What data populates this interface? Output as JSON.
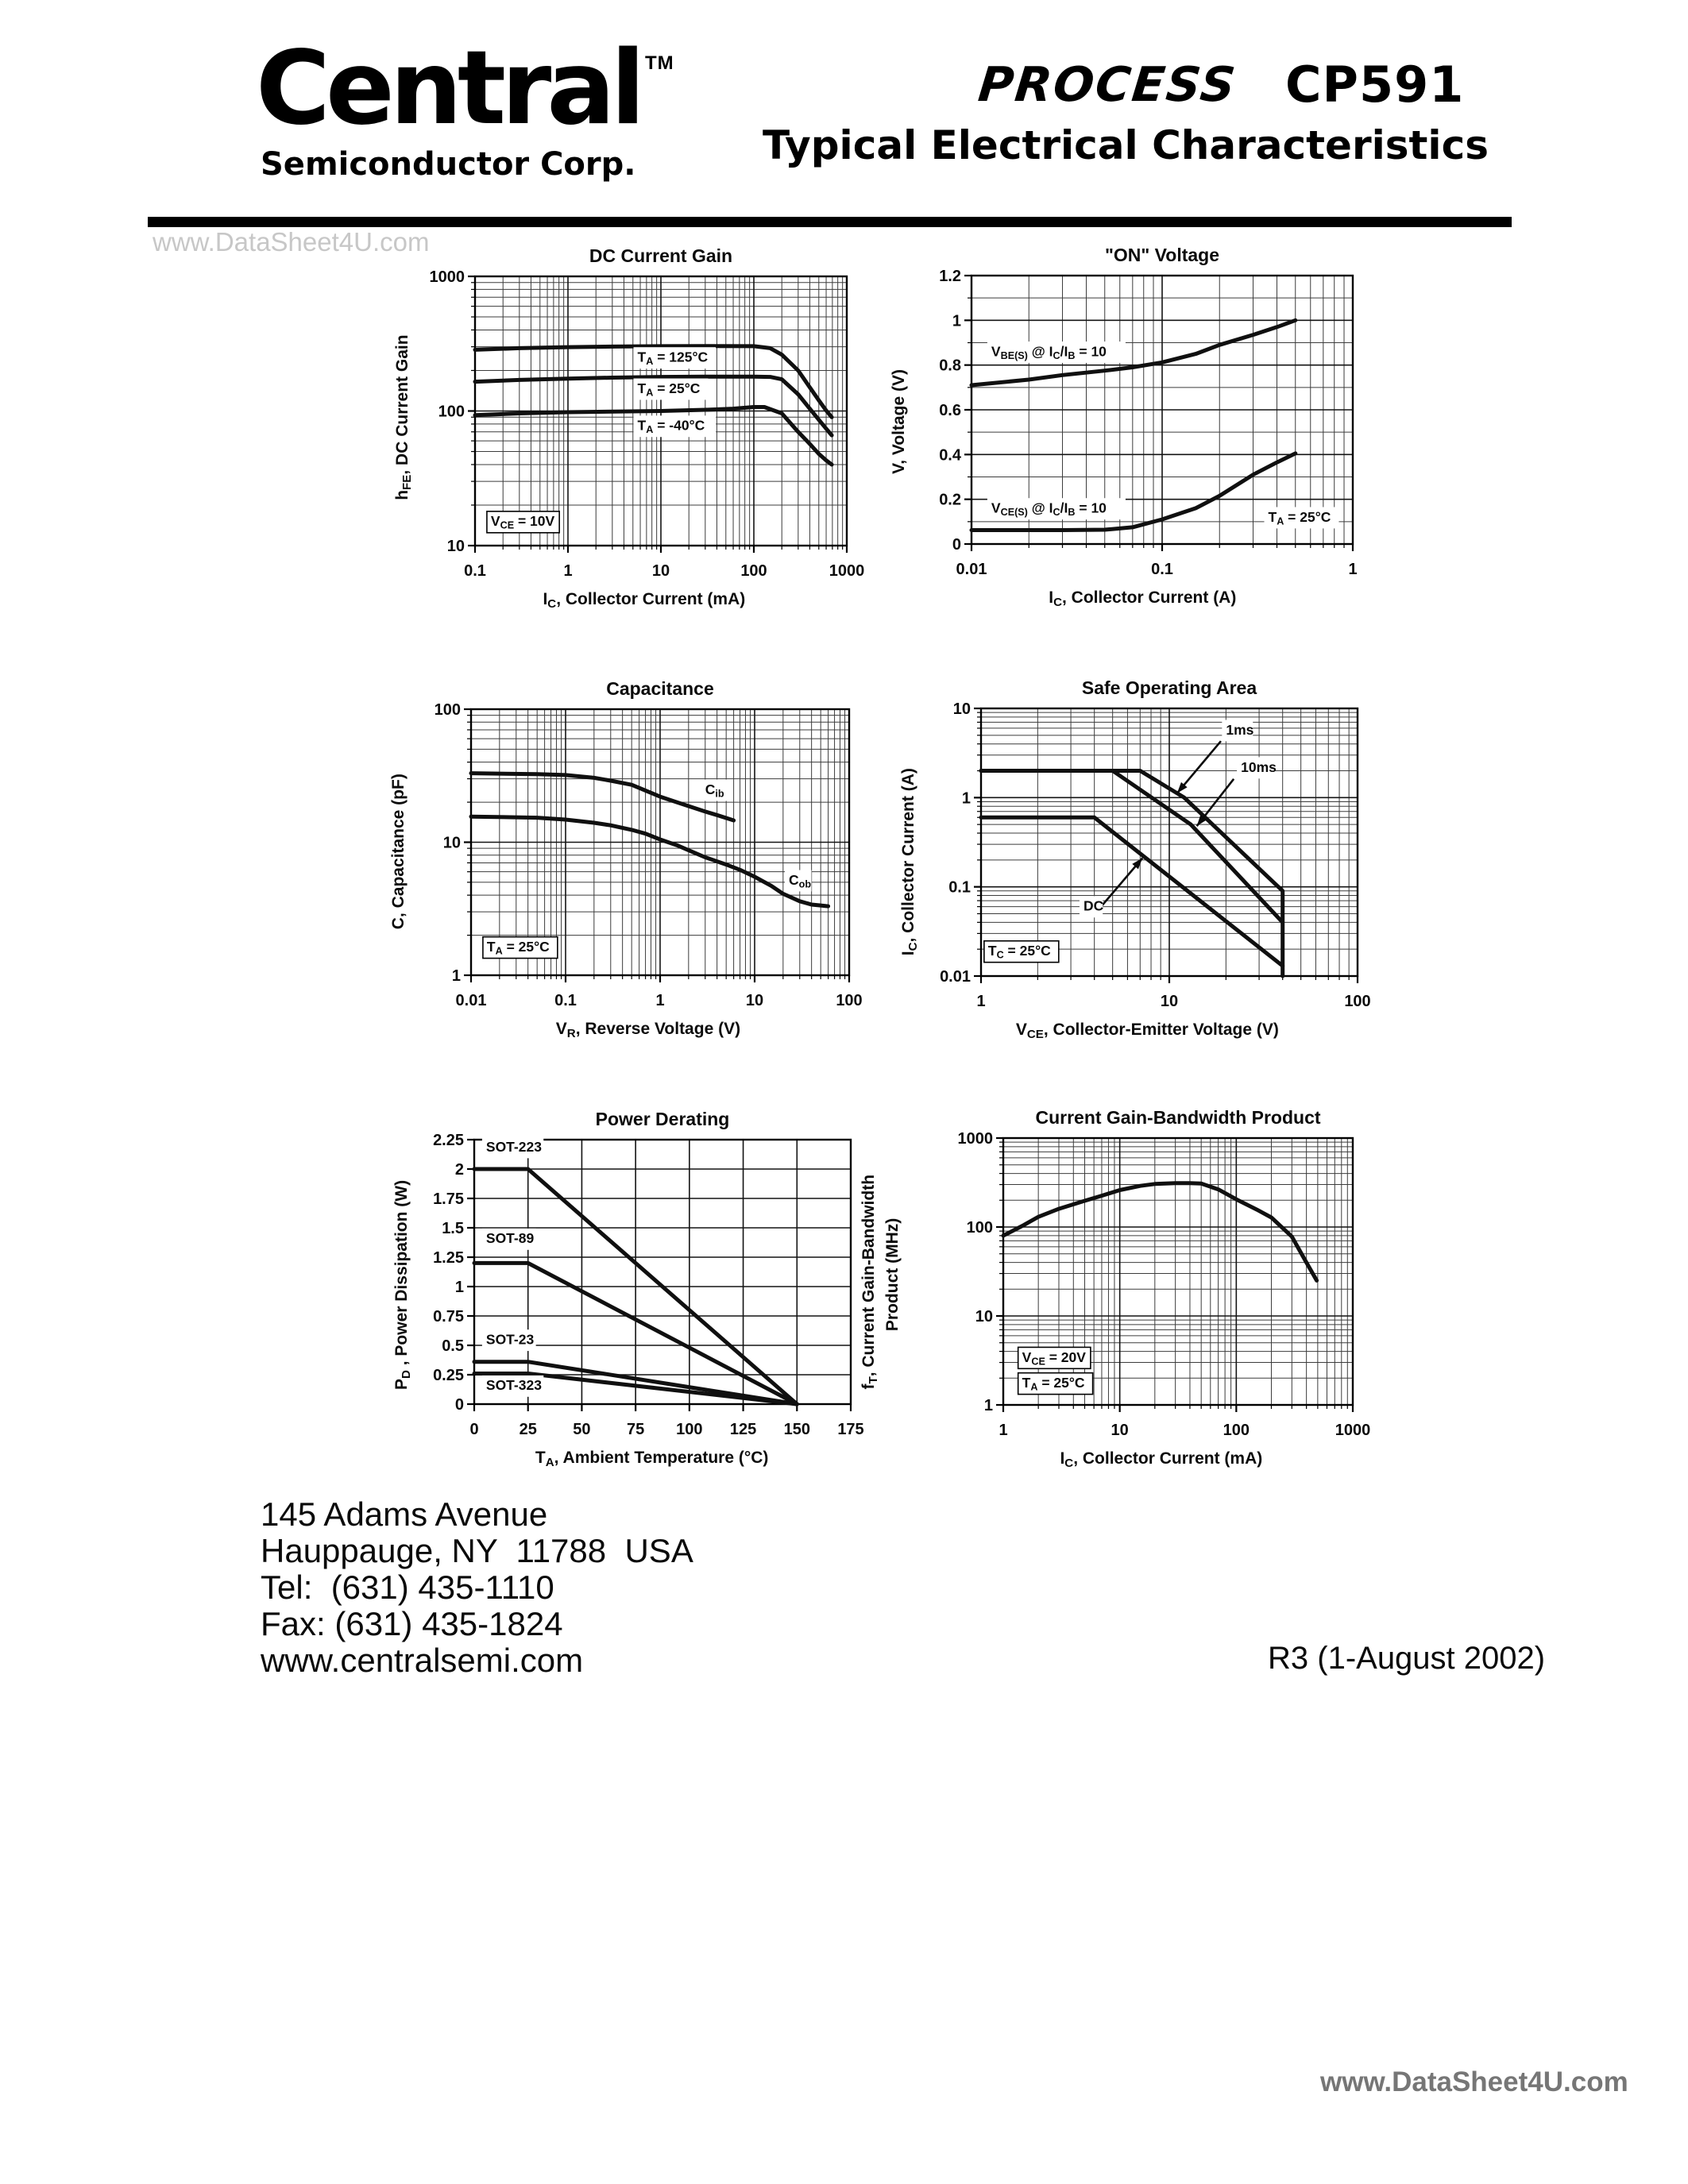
{
  "page": {
    "watermark_top": "www.DataSheet4U.com",
    "watermark_bottom": "www.DataSheet4U.com",
    "colors": {
      "ink": "#000000",
      "watermark_light": "#c7c7c7",
      "watermark_dark": "#767676"
    }
  },
  "header": {
    "logo_name": "Central",
    "logo_tm": "TM",
    "logo_subtitle": "Semiconductor Corp.",
    "process_label": "PROCESS",
    "part_number": "CP591",
    "doc_title": "Typical Electrical Characteristics"
  },
  "footer": {
    "address_line1": "145 Adams Avenue",
    "address_line2": "Hauppauge, NY  11788  USA",
    "phone": "Tel:  (631) 435-1110",
    "fax": "Fax: (631) 435-1824",
    "website": "www.centralsemi.com",
    "revision": "R3 (1-August 2002)"
  },
  "chart_data": [
    {
      "id": "dc-current-gain",
      "type": "line",
      "title": "DC Current Gain",
      "xlabel": "I~C~, Collector Current (mA)",
      "ylabel": "h~FE~, DC Current Gain",
      "xscale": "log",
      "yscale": "log",
      "xlim": [
        0.1,
        1000
      ],
      "ylim": [
        10,
        1000
      ],
      "xticks": [
        0.1,
        1,
        10,
        100,
        1000
      ],
      "xtick_labels": [
        "0.1",
        "1",
        "10",
        "100",
        "1000"
      ],
      "yticks": [
        10,
        100,
        1000
      ],
      "ytick_labels": [
        "10",
        "100",
        "1000"
      ],
      "grid": "on",
      "legend": "inline-labels",
      "series": [
        {
          "name": "TA = 125°C",
          "points": [
            [
              0.1,
              285
            ],
            [
              0.3,
              293
            ],
            [
              1,
              298
            ],
            [
              3,
              301
            ],
            [
              10,
              303
            ],
            [
              30,
              304
            ],
            [
              100,
              303
            ],
            [
              150,
              293
            ],
            [
              200,
              262
            ],
            [
              300,
              200
            ],
            [
              400,
              150
            ],
            [
              500,
              120
            ],
            [
              600,
              101
            ],
            [
              690,
              90
            ]
          ]
        },
        {
          "name": "TA = 25°C",
          "points": [
            [
              0.1,
              165
            ],
            [
              0.3,
              170
            ],
            [
              1,
              174
            ],
            [
              3,
              177
            ],
            [
              10,
              179
            ],
            [
              30,
              180
            ],
            [
              100,
              180
            ],
            [
              150,
              179
            ],
            [
              200,
              172
            ],
            [
              300,
              133
            ],
            [
              400,
              104
            ],
            [
              500,
              86
            ],
            [
              600,
              74
            ],
            [
              690,
              66
            ]
          ]
        },
        {
          "name": "TA = -40°C",
          "points": [
            [
              0.1,
              93
            ],
            [
              0.3,
              96
            ],
            [
              1,
              98
            ],
            [
              10,
              100
            ],
            [
              30,
              102
            ],
            [
              60,
              104
            ],
            [
              100,
              107
            ],
            [
              130,
              107
            ],
            [
              200,
              96
            ],
            [
              300,
              70
            ],
            [
              400,
              57
            ],
            [
              500,
              48
            ],
            [
              600,
              43
            ],
            [
              690,
              40
            ]
          ]
        }
      ],
      "labels": [
        {
          "text": "T~A~ = 125°C",
          "x": 5.6,
          "y": 232
        },
        {
          "text": "T~A~ = 25°C",
          "x": 5.6,
          "y": 136
        },
        {
          "text": "T~A~ = -40°C",
          "x": 5.6,
          "y": 72
        },
        {
          "text": "V~CE~ = 10V",
          "x": 0.148,
          "y": 14,
          "box": true
        }
      ]
    },
    {
      "id": "on-voltage",
      "type": "line",
      "title": "\"ON\" Voltage",
      "xlabel": "I~C~, Collector Current (A)",
      "ylabel": "V, Voltage (V)",
      "xscale": "log",
      "yscale": "linear",
      "xlim": [
        0.01,
        1
      ],
      "ylim": [
        0,
        1.2
      ],
      "xticks": [
        0.01,
        0.1,
        1
      ],
      "xtick_labels": [
        "0.01",
        "0.1",
        "1"
      ],
      "yticks": [
        0,
        0.2,
        0.4,
        0.6,
        0.8,
        1,
        1.2
      ],
      "ytick_labels": [
        "0",
        "0.2",
        "0.4",
        "0.6",
        "0.8",
        "1",
        "1.2"
      ],
      "y_minor_step": 0.1,
      "grid": "on",
      "legend": "inline-labels",
      "series": [
        {
          "name": "VBE(S) @ IC/IB = 10",
          "points": [
            [
              0.01,
              0.71
            ],
            [
              0.02,
              0.735
            ],
            [
              0.03,
              0.755
            ],
            [
              0.05,
              0.775
            ],
            [
              0.07,
              0.79
            ],
            [
              0.1,
              0.812
            ],
            [
              0.15,
              0.85
            ],
            [
              0.2,
              0.89
            ],
            [
              0.3,
              0.935
            ],
            [
              0.4,
              0.97
            ],
            [
              0.5,
              1.0
            ]
          ]
        },
        {
          "name": "VCE(S) @ IC/IB = 10",
          "points": [
            [
              0.01,
              0.062
            ],
            [
              0.03,
              0.062
            ],
            [
              0.05,
              0.064
            ],
            [
              0.07,
              0.075
            ],
            [
              0.1,
              0.11
            ],
            [
              0.15,
              0.16
            ],
            [
              0.2,
              0.215
            ],
            [
              0.3,
              0.31
            ],
            [
              0.4,
              0.365
            ],
            [
              0.5,
              0.405
            ]
          ]
        }
      ],
      "labels": [
        {
          "text": "V~BE(S)~ @ I~C~/I~B~ = 10",
          "x": 0.0127,
          "y": 0.84
        },
        {
          "text": "V~CE(S)~ @ I~C~/I~B~ = 10",
          "x": 0.0127,
          "y": 0.14
        },
        {
          "text": "T~A~ = 25°C",
          "x": 0.36,
          "y": 0.1
        }
      ]
    },
    {
      "id": "capacitance",
      "type": "line",
      "title": "Capacitance",
      "xlabel": "V~R~, Reverse Voltage (V)",
      "ylabel": "C, Capacitance (pF)",
      "xscale": "log",
      "yscale": "log",
      "xlim": [
        0.01,
        100
      ],
      "ylim": [
        1,
        100
      ],
      "xticks": [
        0.01,
        0.1,
        1,
        10,
        100
      ],
      "xtick_labels": [
        "0.01",
        "0.1",
        "1",
        "10",
        "100"
      ],
      "yticks": [
        1,
        10,
        100
      ],
      "ytick_labels": [
        "1",
        "10",
        "100"
      ],
      "grid": "on",
      "legend": "inline-labels",
      "series": [
        {
          "name": "Cib",
          "points": [
            [
              0.01,
              33
            ],
            [
              0.05,
              32.5
            ],
            [
              0.1,
              32
            ],
            [
              0.2,
              30.5
            ],
            [
              0.3,
              29
            ],
            [
              0.5,
              27
            ],
            [
              1,
              22
            ],
            [
              1.5,
              20
            ],
            [
              2,
              18.7
            ],
            [
              3,
              17
            ],
            [
              4,
              16
            ],
            [
              5,
              15.2
            ],
            [
              6,
              14.6
            ]
          ]
        },
        {
          "name": "Cob",
          "points": [
            [
              0.01,
              15.6
            ],
            [
              0.05,
              15.3
            ],
            [
              0.1,
              14.8
            ],
            [
              0.2,
              14
            ],
            [
              0.3,
              13.4
            ],
            [
              0.5,
              12.4
            ],
            [
              0.7,
              11.6
            ],
            [
              1,
              10.5
            ],
            [
              1.5,
              9.5
            ],
            [
              2,
              8.7
            ],
            [
              3,
              7.7
            ],
            [
              5,
              6.8
            ],
            [
              7,
              6.2
            ],
            [
              10,
              5.5
            ],
            [
              15,
              4.7
            ],
            [
              20,
              4.1
            ],
            [
              30,
              3.6
            ],
            [
              40,
              3.4
            ],
            [
              50,
              3.35
            ],
            [
              60,
              3.3
            ]
          ]
        }
      ],
      "labels": [
        {
          "text": "C~ib~",
          "x": 3.0,
          "y": 23
        },
        {
          "text": "C~ob~",
          "x": 23,
          "y": 4.8
        },
        {
          "text": "T~A~ = 25°C",
          "x": 0.0147,
          "y": 1.51,
          "box": true
        }
      ]
    },
    {
      "id": "safe-operating-area",
      "type": "line",
      "title": "Safe Operating Area",
      "xlabel": "V~CE~, Collector-Emitter Voltage (V)",
      "ylabel": "I~C~, Collector Current (A)",
      "xscale": "log",
      "yscale": "log",
      "xlim": [
        1,
        100
      ],
      "ylim": [
        0.01,
        10
      ],
      "xticks": [
        1,
        10,
        100
      ],
      "xtick_labels": [
        "1",
        "10",
        "100"
      ],
      "yticks": [
        0.01,
        0.1,
        1,
        10
      ],
      "ytick_labels": [
        "0.01",
        "0.1",
        "1",
        "10"
      ],
      "grid": "on",
      "legend": "inline-labels",
      "series": [
        {
          "name": "1ms",
          "points": [
            [
              1,
              2
            ],
            [
              7,
              2
            ],
            [
              12,
              1
            ],
            [
              40,
              0.09
            ],
            [
              40,
              0.01
            ]
          ]
        },
        {
          "name": "10ms",
          "points": [
            [
              1,
              2
            ],
            [
              5,
              2
            ],
            [
              13,
              0.5
            ],
            [
              40,
              0.04
            ]
          ]
        },
        {
          "name": "DC",
          "points": [
            [
              1,
              0.6
            ],
            [
              4,
              0.6
            ],
            [
              40,
              0.013
            ]
          ]
        }
      ],
      "labels": [
        {
          "text": "1ms",
          "x": 20,
          "y": 5.1
        },
        {
          "text": "10ms",
          "x": 24,
          "y": 1.95
        },
        {
          "text": "DC",
          "x": 3.5,
          "y": 0.054
        },
        {
          "text": "T~C~ = 25°C",
          "x": 1.09,
          "y": 0.017,
          "box": true
        }
      ],
      "arrows": [
        {
          "from": [
            18.8,
            4.3
          ],
          "to": [
            11,
            1.12
          ]
        },
        {
          "from": [
            22,
            1.62
          ],
          "to": [
            14,
            0.48
          ]
        },
        {
          "from": [
            4.4,
            0.062
          ],
          "to": [
            7.2,
            0.21
          ]
        }
      ]
    },
    {
      "id": "power-derating",
      "type": "line",
      "title": "Power Derating",
      "xlabel": "T~A~, Ambient Temperature (°C)",
      "ylabel": "P~D~ , Power Dissipation (W)",
      "xscale": "linear",
      "yscale": "linear",
      "xlim": [
        0,
        175
      ],
      "ylim": [
        0,
        2.25
      ],
      "xticks": [
        0,
        25,
        50,
        75,
        100,
        125,
        150,
        175
      ],
      "xtick_labels": [
        "0",
        "25",
        "50",
        "75",
        "100",
        "125",
        "150",
        "175"
      ],
      "yticks": [
        0,
        0.25,
        0.5,
        0.75,
        1,
        1.25,
        1.5,
        1.75,
        2,
        2.25
      ],
      "ytick_labels": [
        "0",
        "0.25",
        "0.5",
        "0.75",
        "1",
        "1.25",
        "1.5",
        "1.75",
        "2",
        "2.25"
      ],
      "grid": "on",
      "legend": "inline-labels",
      "series": [
        {
          "name": "SOT-223",
          "points": [
            [
              0,
              2
            ],
            [
              25,
              2
            ],
            [
              150,
              0
            ]
          ]
        },
        {
          "name": "SOT-89",
          "points": [
            [
              0,
              1.2
            ],
            [
              25,
              1.2
            ],
            [
              150,
              0
            ]
          ]
        },
        {
          "name": "SOT-23",
          "points": [
            [
              0,
              0.36
            ],
            [
              25,
              0.36
            ],
            [
              150,
              0
            ]
          ]
        },
        {
          "name": "SOT-323",
          "points": [
            [
              0,
              0.26
            ],
            [
              25,
              0.26
            ],
            [
              150,
              0
            ]
          ]
        }
      ],
      "labels": [
        {
          "text": "SOT-223",
          "x": 5.5,
          "y": 2.15
        },
        {
          "text": "SOT-89",
          "x": 5.5,
          "y": 1.37
        },
        {
          "text": "SOT-23",
          "x": 5.5,
          "y": 0.51
        },
        {
          "text": "SOT-323",
          "x": 5.5,
          "y": 0.12
        }
      ]
    },
    {
      "id": "gain-bandwidth-product",
      "type": "line",
      "title": "Current Gain-Bandwidth Product",
      "xlabel": "I~C~, Collector Current (mA)",
      "ylabel": "f~T~, Current Gain-Bandwidth|Product (MHz)",
      "xscale": "log",
      "yscale": "log",
      "xlim": [
        1,
        1000
      ],
      "ylim": [
        1,
        1000
      ],
      "xticks": [
        1,
        10,
        100,
        1000
      ],
      "xtick_labels": [
        "1",
        "10",
        "100",
        "1000"
      ],
      "yticks": [
        1,
        10,
        100,
        1000
      ],
      "ytick_labels": [
        "1",
        "10",
        "100",
        "1000"
      ],
      "grid": "on",
      "legend": "inline-labels",
      "series": [
        {
          "name": "fT",
          "points": [
            [
              1,
              80
            ],
            [
              1.5,
              105
            ],
            [
              2,
              130
            ],
            [
              3,
              160
            ],
            [
              5,
              197
            ],
            [
              7,
              225
            ],
            [
              10,
              260
            ],
            [
              15,
              290
            ],
            [
              20,
              305
            ],
            [
              30,
              312
            ],
            [
              40,
              312
            ],
            [
              50,
              308
            ],
            [
              70,
              265
            ],
            [
              100,
              205
            ],
            [
              150,
              157
            ],
            [
              200,
              128
            ],
            [
              300,
              78
            ],
            [
              400,
              40
            ],
            [
              490,
              25
            ]
          ]
        }
      ],
      "labels": [
        {
          "text": "V~CE~ = 20V",
          "x": 1.45,
          "y": 3.05,
          "box": true
        },
        {
          "text": "T~A~ = 25°C",
          "x": 1.45,
          "y": 1.57,
          "box": true
        }
      ]
    }
  ]
}
